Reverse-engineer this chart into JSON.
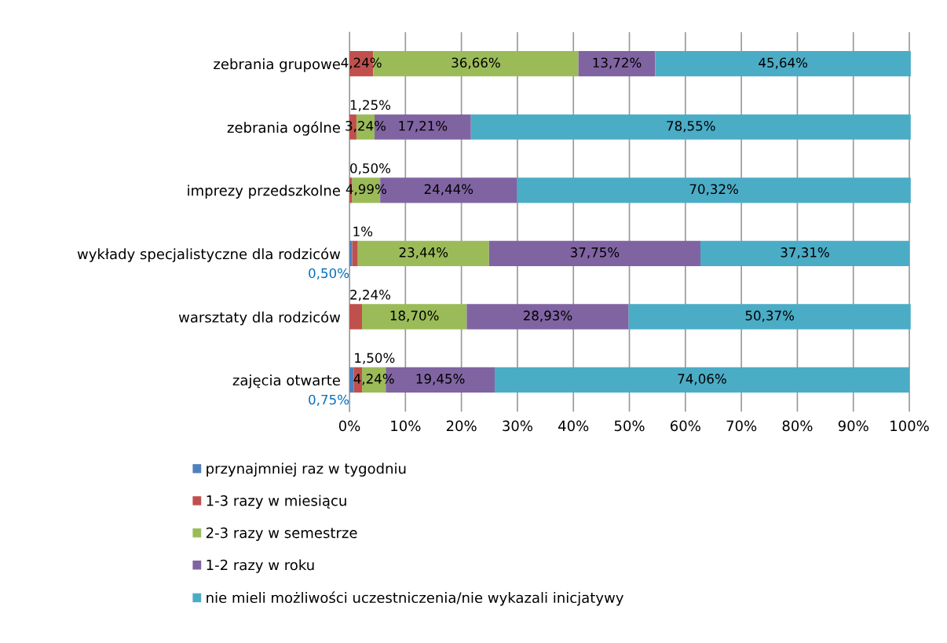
{
  "chart_data": {
    "type": "bar",
    "orientation": "horizontal",
    "stacked": true,
    "categories": [
      "zebrania grupowe",
      "zebrania ogólne",
      "imprezy przedszkolne",
      "wykłady specjalistyczne dla rodziców",
      "warsztaty dla rodziców",
      "zajęcia otwarte"
    ],
    "series": [
      {
        "name": "przynajmniej raz w tygodniu",
        "color": "#4f81bd",
        "values": [
          null,
          null,
          null,
          0.5,
          null,
          0.75
        ],
        "value_labels": [
          null,
          null,
          null,
          "0,50%",
          null,
          "0,75%"
        ]
      },
      {
        "name": "1-3 razy w miesiącu",
        "color": "#c0504d",
        "values": [
          4.24,
          1.25,
          0.5,
          1,
          2.24,
          1.5
        ],
        "value_labels": [
          "4,24%",
          "1,25%",
          "0,50%",
          "1%",
          "2,24%",
          "1,50%"
        ]
      },
      {
        "name": "2-3 razy w semestrze",
        "color": "#9bbb59",
        "values": [
          36.66,
          3.24,
          4.99,
          23.44,
          18.7,
          4.24
        ],
        "value_labels": [
          "36,66%",
          "3,24%",
          "4,99%",
          "23,44%",
          "18,70%",
          "4,24%"
        ]
      },
      {
        "name": "1-2 razy w roku",
        "color": "#8064a2",
        "values": [
          13.72,
          17.21,
          24.44,
          37.75,
          28.93,
          19.45
        ],
        "value_labels": [
          "13,72%",
          "17,21%",
          "24,44%",
          "37,75%",
          "28,93%",
          "19,45%"
        ]
      },
      {
        "name": "nie mieli możliwości uczestniczenia/nie wykazali inicjatywy",
        "color": "#4bacc6",
        "values": [
          45.64,
          78.55,
          70.32,
          37.31,
          50.37,
          74.06
        ],
        "value_labels": [
          "45,64%",
          "78,55%",
          "70,32%",
          "37,31%",
          "50,37%",
          "74,06%"
        ]
      }
    ],
    "xlim": [
      0,
      100.3
    ],
    "xticks": [
      {
        "value": 0,
        "label": "0%"
      },
      {
        "value": 10,
        "label": "10%"
      },
      {
        "value": 20,
        "label": "20%"
      },
      {
        "value": 30,
        "label": "30%"
      },
      {
        "value": 40,
        "label": "40%"
      },
      {
        "value": 50,
        "label": "50%"
      },
      {
        "value": 60,
        "label": "60%"
      },
      {
        "value": 70,
        "label": "70%"
      },
      {
        "value": 80,
        "label": "80%"
      },
      {
        "value": 90,
        "label": "90%"
      },
      {
        "value": 100,
        "label": "100%"
      }
    ],
    "grid": "x",
    "legend": "bottom"
  }
}
